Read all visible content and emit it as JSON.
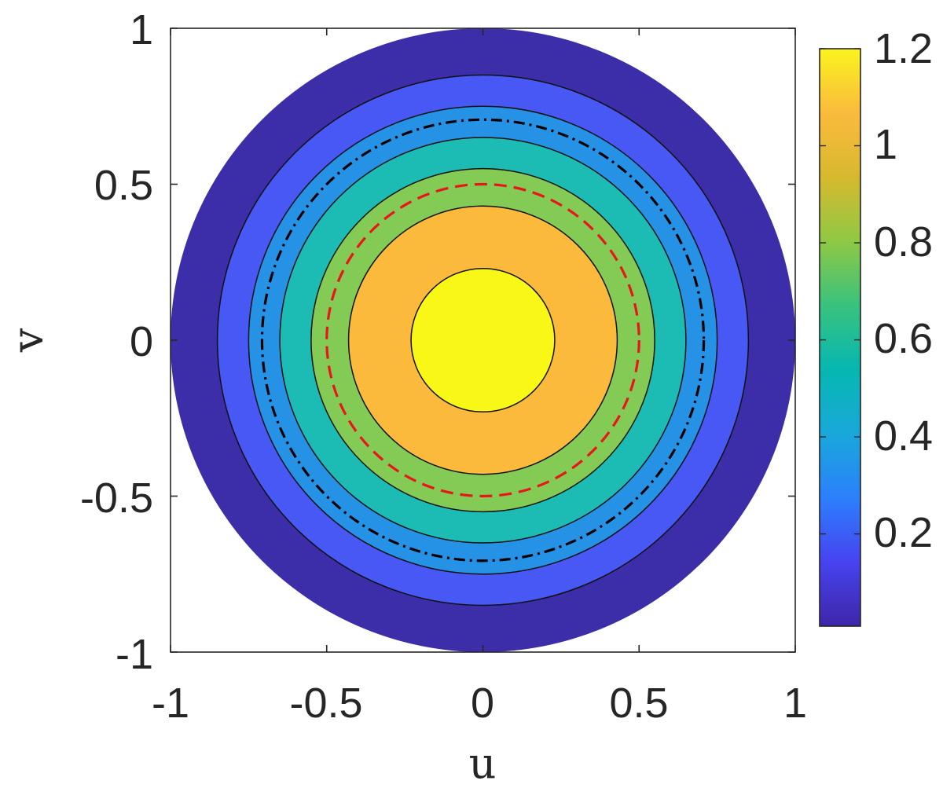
{
  "chart_data": {
    "type": "contour",
    "title": "",
    "xlabel": "u",
    "ylabel": "v",
    "xlim": [
      -1,
      1
    ],
    "ylim": [
      -1,
      1
    ],
    "x_ticks": [
      "-1",
      "-0.5",
      "0",
      "0.5",
      "1"
    ],
    "y_ticks": [
      "-1",
      "-0.5",
      "0",
      "0.5",
      "1"
    ],
    "grid": false,
    "domain_shape": "unit disk",
    "colorbar": {
      "position": "right",
      "range": [
        0.01,
        1.2
      ],
      "ticks": [
        "0.2",
        "0.4",
        "0.6",
        "0.8",
        "1",
        "1.2"
      ],
      "colormap": "parula"
    },
    "filled_regions": [
      {
        "outer_radius": 1.0,
        "color": "#3C2DA8"
      },
      {
        "outer_radius": 0.85,
        "color": "#4858F5"
      },
      {
        "outer_radius": 0.75,
        "color": "#2592E6"
      },
      {
        "outer_radius": 0.65,
        "color": "#1CBCB4"
      },
      {
        "outer_radius": 0.55,
        "color": "#84CB55"
      },
      {
        "outer_radius": 0.43,
        "color": "#FCBA3D"
      },
      {
        "outer_radius": 0.23,
        "color": "#F9F716"
      }
    ],
    "contour_lines": [
      0.85,
      0.75,
      0.65,
      0.55,
      0.43,
      0.23
    ],
    "reference_curves": [
      {
        "radius": 0.7071,
        "color": "#000000",
        "style": "dash-dot"
      },
      {
        "radius": 0.5,
        "color": "#E8151B",
        "style": "dashed"
      }
    ],
    "colormap_stops": [
      "#3E26A8",
      "#4743F0",
      "#2C7FFC",
      "#19A8DA",
      "#06B7B1",
      "#39C27E",
      "#8FC844",
      "#D7B92E",
      "#FBBA3D",
      "#FAF41E"
    ]
  }
}
